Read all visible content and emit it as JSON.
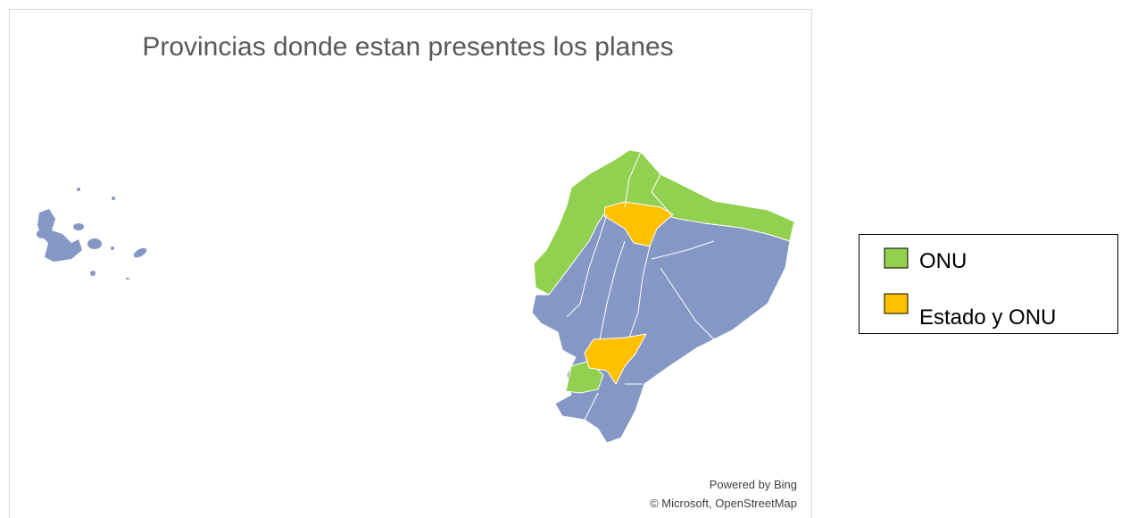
{
  "title": "Provincias donde estan presentes los planes",
  "legend": {
    "items": [
      {
        "label": "ONU",
        "color": "#92d050"
      },
      {
        "label": "Estado y ONU",
        "color": "#ffc000"
      }
    ]
  },
  "attribution": {
    "line1": "Powered by Bing",
    "line2": "© Microsoft, OpenStreetMap"
  }
}
